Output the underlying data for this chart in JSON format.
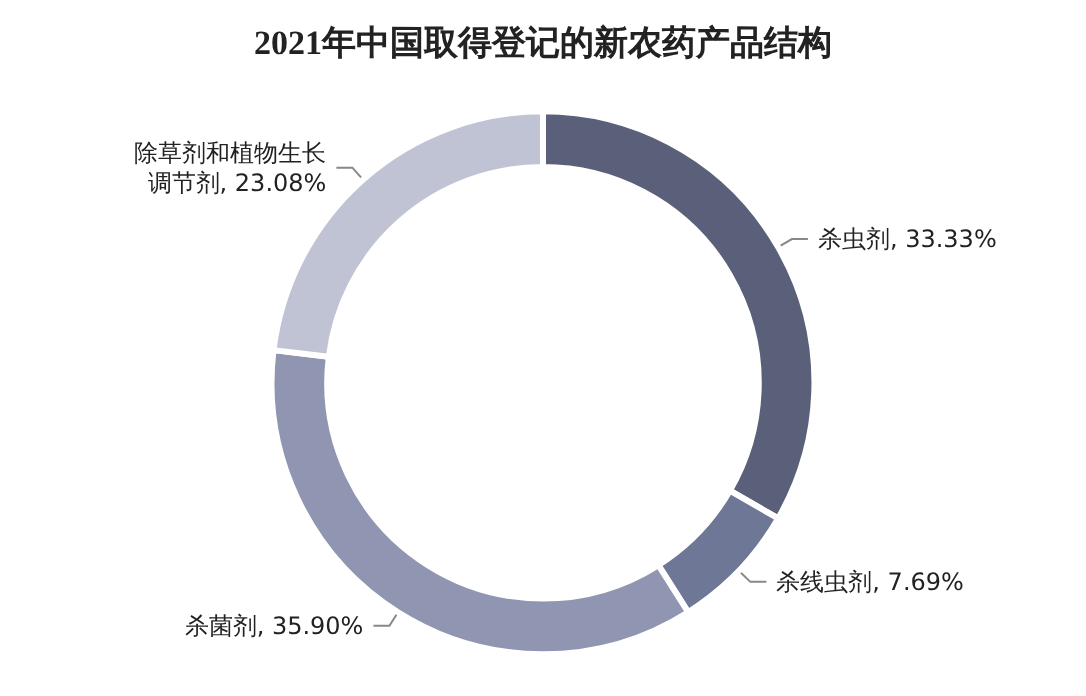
{
  "chart_data": {
    "type": "donut",
    "title": "2021年中国取得登记的新农药产品结构",
    "categories": [
      "杀虫剂",
      "杀线虫剂",
      "杀菌剂",
      "除草剂和植物生长调节剂"
    ],
    "values": [
      33.33,
      7.69,
      35.9,
      23.08
    ],
    "value_labels": [
      "33.33%",
      "7.69%",
      "35.90%",
      "23.08%"
    ],
    "colors": [
      "#5a6079",
      "#6e7896",
      "#9096b1",
      "#c0c3d3"
    ],
    "legend": false
  }
}
